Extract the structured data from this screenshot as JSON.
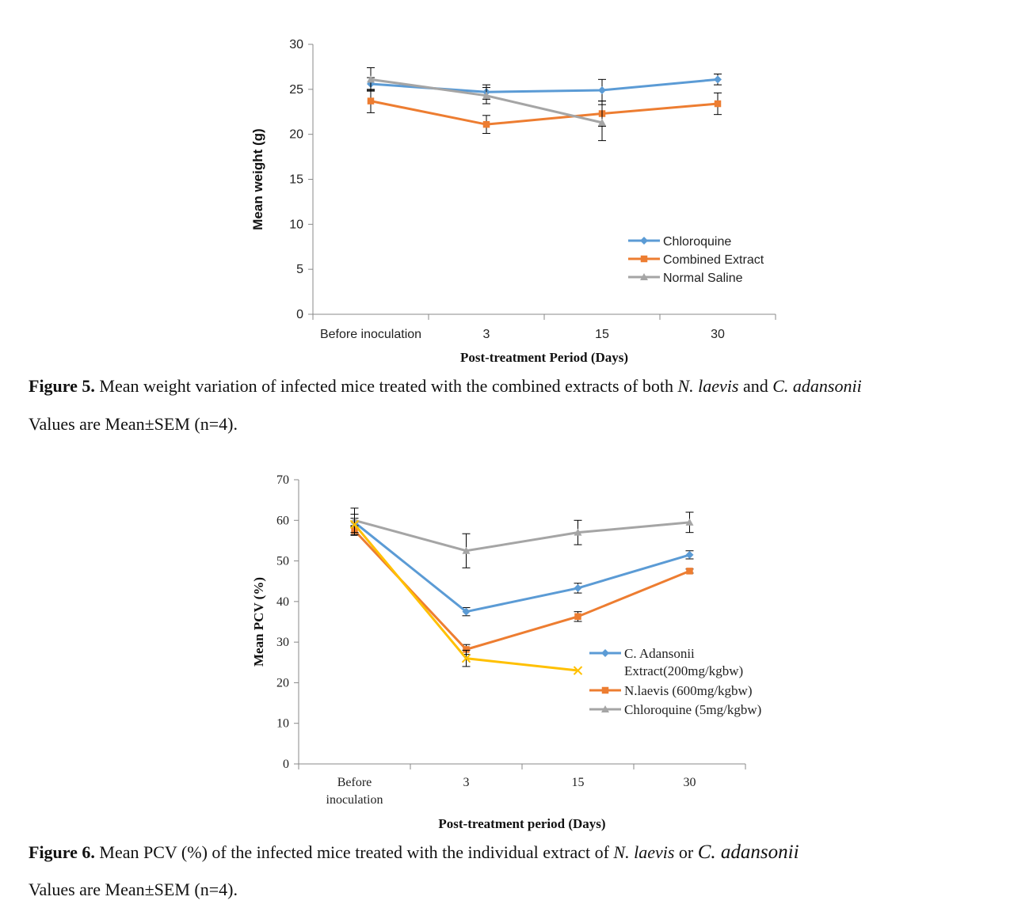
{
  "figure5": {
    "caption": {
      "label": "Figure 5.",
      "text": " Mean weight variation of infected mice treated with the combined extracts of both ",
      "species1": "N. laevis",
      "and": " and ",
      "species2": "C. adansonii",
      "note": "Values are Mean±SEM (n=4)."
    },
    "chart_data": {
      "type": "line",
      "categories": [
        "Before inoculation",
        "3",
        "15",
        "30"
      ],
      "xlabel": "Post-treatment Period (Days)",
      "ylabel": "Mean weight (g)",
      "ylim": [
        0,
        30
      ],
      "yticks": [
        0,
        5,
        10,
        15,
        20,
        25,
        30
      ],
      "legend": "inside-right",
      "series": [
        {
          "name": "Chloroquine",
          "color": "#5B9BD5",
          "marker": "diamond",
          "values": [
            25.6,
            24.7,
            24.9,
            26.1
          ],
          "errors": [
            0.7,
            0.8,
            1.2,
            0.6
          ]
        },
        {
          "name": "Combined Extract",
          "color": "#ED7D31",
          "marker": "square",
          "values": [
            23.7,
            21.1,
            22.3,
            23.4
          ],
          "errors": [
            1.3,
            1.0,
            1.4,
            1.2
          ]
        },
        {
          "name": "Normal Saline",
          "color": "#A5A5A5",
          "marker": "triangle",
          "values": [
            26.1,
            24.3,
            21.3,
            null
          ],
          "errors": [
            1.3,
            0.9,
            2.0,
            null
          ]
        }
      ]
    }
  },
  "figure6": {
    "caption": {
      "label": "Figure 6.",
      "text": " Mean PCV (%) of the infected mice treated with the individual extract of ",
      "species1": "N. laevis",
      "or": " or ",
      "species2": "C. adansonii",
      "note": "Values are Mean±SEM (n=4)."
    },
    "chart_data": {
      "type": "line",
      "categories": [
        "Before\ninoculation",
        "3",
        "15",
        "30"
      ],
      "xlabel": "Post-treatment period (Days)",
      "ylabel": "Mean PCV (%)",
      "ylim": [
        0,
        70
      ],
      "yticks": [
        0,
        10,
        20,
        30,
        40,
        50,
        60,
        70
      ],
      "legend": "inside-right",
      "series": [
        {
          "name": "C. Adansonii\nExtract(200mg/kgbw)",
          "color": "#5B9BD5",
          "marker": "diamond",
          "values": [
            59.5,
            37.5,
            43.3,
            51.5
          ],
          "errors": [
            1.0,
            1.0,
            1.2,
            1.0
          ]
        },
        {
          "name": "N.laevis (600mg/kgbw)",
          "color": "#ED7D31",
          "marker": "square",
          "values": [
            57.5,
            28.2,
            36.3,
            47.5
          ],
          "errors": [
            1.2,
            1.2,
            1.2,
            0.5
          ]
        },
        {
          "name": "Chloroquine (5mg/kgbw)",
          "color": "#A5A5A5",
          "marker": "triangle",
          "values": [
            60.0,
            52.5,
            57.0,
            59.5
          ],
          "errors": [
            3.0,
            4.2,
            3.0,
            2.5
          ]
        },
        {
          "name": "",
          "color": "#FFC000",
          "marker": "x",
          "values": [
            59.0,
            26.0,
            23.0,
            null
          ],
          "errors": [
            2.5,
            2.0,
            null,
            null
          ]
        }
      ]
    }
  }
}
